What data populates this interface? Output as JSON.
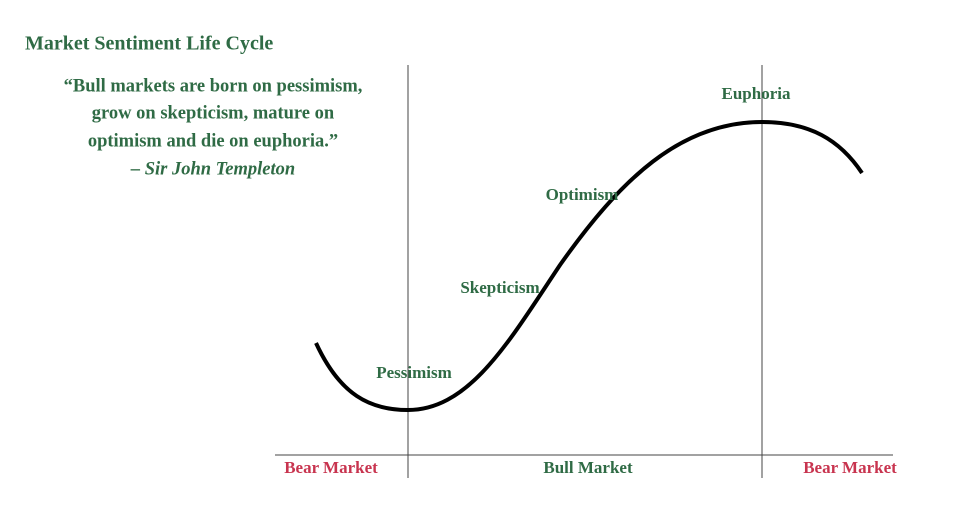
{
  "header": {
    "title": "Market Sentiment Life Cycle"
  },
  "quote": {
    "lines": [
      "“Bull markets are born on pessimism,",
      "grow on skepticism, mature on",
      "optimism and die on euphoria.”"
    ],
    "attribution": "– Sir John Templeton"
  },
  "stages": [
    "Pessimism",
    "Skepticism",
    "Optimism",
    "Euphoria"
  ],
  "phases": [
    "Bear Market",
    "Bull Market",
    "Bear Market"
  ]
}
